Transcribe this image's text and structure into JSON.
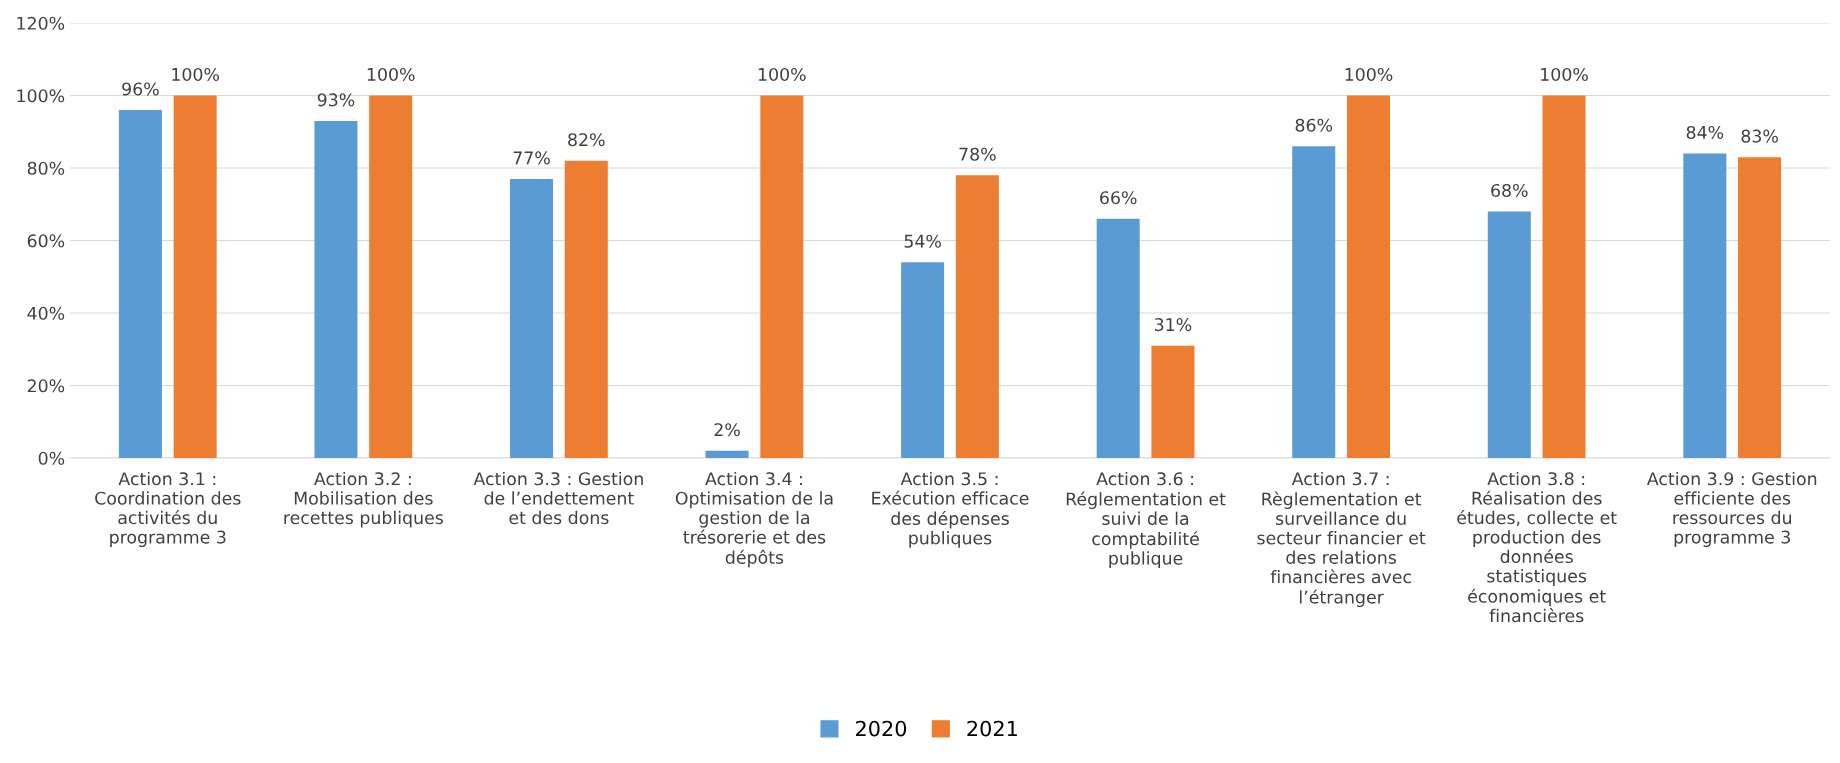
{
  "chart_data": {
    "type": "bar",
    "categories": [
      "Action 3.1 :\nCoordination des\nactivités du\nprogramme 3",
      "Action 3.2 :\nMobilisation des\nrecettes publiques",
      "Action 3.3 : Gestion\nde l’endettement\net des dons",
      "Action 3.4 :\nOptimisation de la\ngestion de la\ntrésorerie et des\ndépôts",
      "Action 3.5 :\nExécution efficace\ndes dépenses\npubliques",
      "Action 3.6 :\nRéglementation et\nsuivi de la\ncomptabilité\npublique",
      "Action 3.7 :\nRèglementation et\nsurveillance du\nsecteur financier et\ndes relations\nfinancières avec\nl’étranger",
      "Action 3.8 :\nRéalisation des\nétudes, collecte et\nproduction des\ndonnées\nstatistiques\néconomiques et\nfinancières",
      "Action 3.9 : Gestion\nefficiente des\nressources du\nprogramme 3"
    ],
    "series": [
      {
        "name": "2020",
        "color": "#5b9bd5",
        "values": [
          96,
          93,
          77,
          2,
          54,
          66,
          86,
          68,
          84
        ],
        "value_labels": [
          "96%",
          "93%",
          "77%",
          "2%",
          "54%",
          "66%",
          "86%",
          "68%",
          "84%"
        ]
      },
      {
        "name": "2021",
        "color": "#ed7d31",
        "values": [
          100,
          100,
          82,
          100,
          78,
          31,
          100,
          100,
          83
        ],
        "value_labels": [
          "100%",
          "100%",
          "82%",
          "100%",
          "78%",
          "31%",
          "100%",
          "100%",
          "83%"
        ]
      }
    ],
    "ylim": [
      0,
      120
    ],
    "yticks": [
      {
        "value": 0,
        "label": "0%"
      },
      {
        "value": 20,
        "label": "20%"
      },
      {
        "value": 40,
        "label": "40%"
      },
      {
        "value": 60,
        "label": "60%"
      },
      {
        "value": 80,
        "label": "80%"
      },
      {
        "value": 100,
        "label": "100%"
      },
      {
        "value": 120,
        "label": "120%"
      }
    ],
    "grid": "y",
    "legend": "bottom"
  }
}
